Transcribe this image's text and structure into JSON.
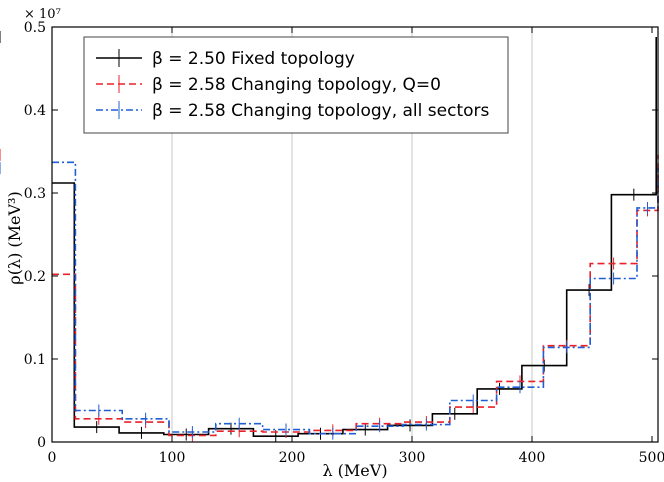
{
  "chart_data": {
    "type": "line",
    "step": true,
    "xlabel": "λ (MeV)",
    "ylabel": "ρ(λ) (MeV³)",
    "scale_note": "× 10⁷",
    "xlim": [
      0,
      505
    ],
    "ylim": [
      0,
      0.5
    ],
    "xticks": [
      0,
      100,
      200,
      300,
      400,
      500
    ],
    "yticks": [
      0,
      0.1,
      0.2,
      0.3,
      0.4,
      0.5
    ],
    "xtick_labels": [
      "0",
      "100",
      "200",
      "300",
      "400",
      "500"
    ],
    "ytick_labels": [
      "0",
      "0.1",
      "0.2",
      "0.3",
      "0.4",
      "0.5"
    ],
    "vertical_grid": [
      100,
      200,
      300,
      400
    ],
    "legend": {
      "position": "top"
    },
    "series": [
      {
        "name": "β = 2.50 Fixed topology",
        "color": "#000000",
        "dash": "solid",
        "bin_edges": [
          0,
          18.6,
          55.9,
          93.2,
          130.5,
          167.8,
          205.1,
          242.4,
          279.7,
          317,
          354.3,
          391.6,
          428.9,
          466.2,
          503.5
        ],
        "values": [
          0.312,
          0.018,
          0.011,
          0.009,
          0.016,
          0.007,
          0.01,
          0.015,
          0.02,
          0.034,
          0.064,
          0.092,
          0.183,
          0.298,
          0.488
        ]
      },
      {
        "name": "β = 2.58 Changing topology, Q=0",
        "color": "#e8212a",
        "dash": "dashed",
        "bin_edges": [
          0,
          19.5,
          58.5,
          97.5,
          136.5,
          175.5,
          214.5,
          253.5,
          292.5,
          331.5,
          370.5,
          409.5,
          448.5,
          487.5,
          505
        ],
        "values": [
          0.202,
          0.028,
          0.024,
          0.008,
          0.013,
          0.012,
          0.014,
          0.022,
          0.024,
          0.042,
          0.073,
          0.116,
          0.215,
          0.279,
          0.346
        ]
      },
      {
        "name": "β = 2.58 Changing topology, all sectors",
        "color": "#1f5fd6",
        "dash": "dashdot",
        "bin_edges": [
          0,
          19.5,
          58.5,
          97.5,
          136.5,
          175.5,
          214.5,
          253.5,
          292.5,
          331.5,
          370.5,
          409.5,
          448.5,
          487.5,
          505
        ],
        "values": [
          0.337,
          0.038,
          0.028,
          0.012,
          0.022,
          0.015,
          0.01,
          0.019,
          0.021,
          0.05,
          0.066,
          0.114,
          0.197,
          0.282,
          0.33
        ]
      }
    ]
  }
}
